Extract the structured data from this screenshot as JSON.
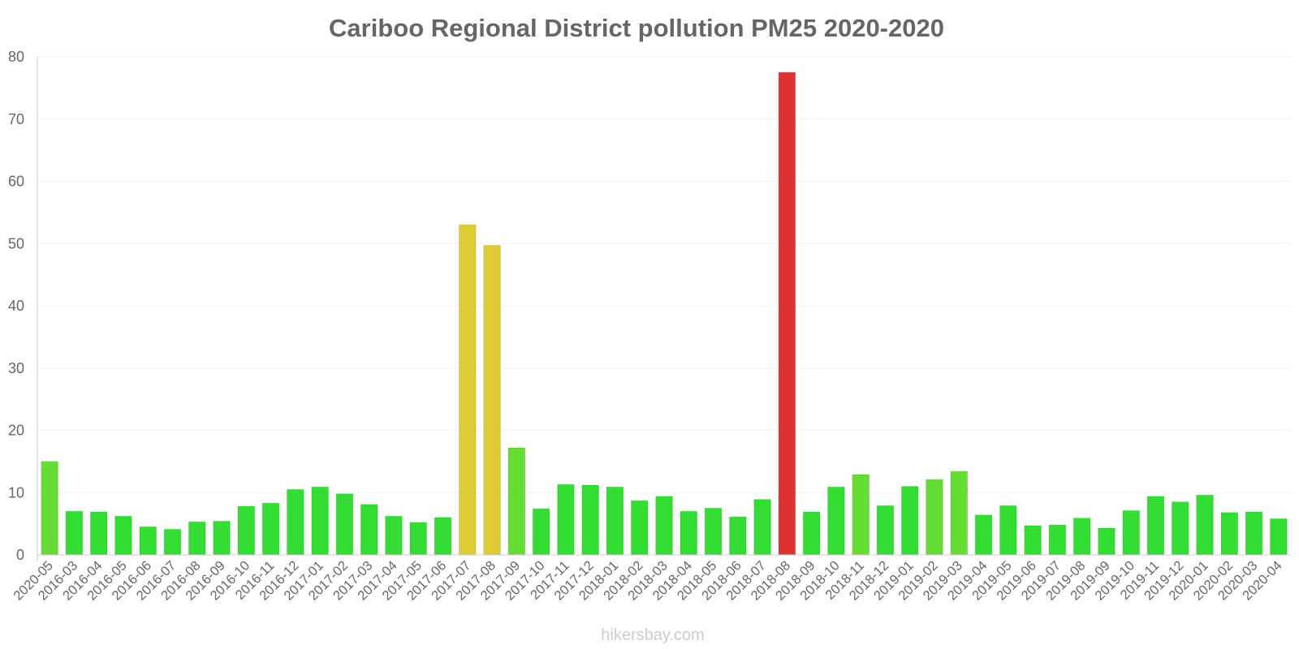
{
  "chart_data": {
    "type": "bar",
    "title": "Cariboo Regional District pollution PM25 2020-2020",
    "xlabel": "",
    "ylabel": "",
    "ylim": [
      0,
      80
    ],
    "yticks": [
      0,
      10,
      20,
      30,
      40,
      50,
      60,
      70,
      80
    ],
    "categories": [
      "2020-05",
      "2016-03",
      "2016-04",
      "2016-05",
      "2016-06",
      "2016-07",
      "2016-08",
      "2016-09",
      "2016-10",
      "2016-11",
      "2016-12",
      "2017-01",
      "2017-02",
      "2017-03",
      "2017-04",
      "2017-05",
      "2017-06",
      "2017-07",
      "2017-08",
      "2017-09",
      "2017-10",
      "2017-11",
      "2017-12",
      "2018-01",
      "2018-02",
      "2018-03",
      "2018-04",
      "2018-05",
      "2018-06",
      "2018-07",
      "2018-08",
      "2018-09",
      "2018-10",
      "2018-11",
      "2018-12",
      "2019-01",
      "2019-02",
      "2019-03",
      "2019-04",
      "2019-05",
      "2019-06",
      "2019-07",
      "2019-08",
      "2019-09",
      "2019-10",
      "2019-11",
      "2019-12",
      "2020-01",
      "2020-02",
      "2020-03",
      "2020-04"
    ],
    "values": [
      15,
      7,
      6.9,
      6.2,
      4.5,
      4.1,
      5.3,
      5.4,
      7.8,
      8.3,
      10.5,
      10.9,
      9.8,
      8.1,
      6.2,
      5.2,
      6,
      53,
      49.7,
      17.2,
      7.4,
      11.3,
      11.2,
      10.9,
      8.7,
      9.4,
      7,
      7.5,
      6.1,
      8.9,
      77.5,
      6.9,
      10.9,
      12.9,
      7.9,
      11,
      12.1,
      13.4,
      6.4,
      7.9,
      4.7,
      4.8,
      5.9,
      4.3,
      7.1,
      9.4,
      8.5,
      9.6,
      6.8,
      6.9,
      5.8
    ],
    "grid": true,
    "legend": "none",
    "colors": {
      "green": "#33dd33",
      "lightgreen": "#66dd33",
      "yellow": "#ddcc33",
      "red": "#dd3333",
      "axis": "#cccccc",
      "text": "#666666"
    }
  },
  "watermark": "hikersbay.com"
}
